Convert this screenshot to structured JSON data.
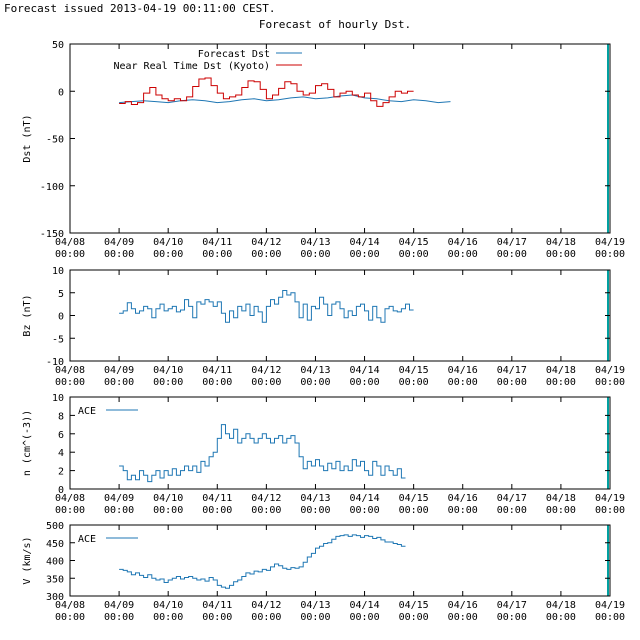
{
  "header": {
    "issued_text": "Forecast issued 2013-04-19 00:11:00 CEST."
  },
  "colors": {
    "forecast": "#1f77b4",
    "observed": "#cc0000",
    "axis": "#000000",
    "nowline": "#00a0a0"
  },
  "chart_data": [
    {
      "type": "line",
      "title": "Forecast of hourly Dst.",
      "ylabel": "Dst (nT)",
      "ylim": [
        -150,
        50
      ],
      "yticks": [
        "50",
        "0",
        "-50",
        "-100",
        "-150"
      ],
      "xlim": [
        "04/08 00:00",
        "04/19 00:00"
      ],
      "x_ticks": [
        [
          "04/08",
          "00:00"
        ],
        [
          "04/09",
          "00:00"
        ],
        [
          "04/10",
          "00:00"
        ],
        [
          "04/11",
          "00:00"
        ],
        [
          "04/12",
          "00:00"
        ],
        [
          "04/13",
          "00:00"
        ],
        [
          "04/14",
          "00:00"
        ],
        [
          "04/15",
          "00:00"
        ],
        [
          "04/16",
          "00:00"
        ],
        [
          "04/17",
          "00:00"
        ],
        [
          "04/18",
          "00:00"
        ],
        [
          "04/19",
          "00:00"
        ]
      ],
      "legend": "top-left",
      "series": [
        {
          "name": "Forecast Dst",
          "style": "line",
          "x_start": "04/09 00:00",
          "step_hours": 6,
          "values": [
            -12,
            -11,
            -10,
            -11,
            -12,
            -10,
            -9,
            -10,
            -12,
            -11,
            -9,
            -8,
            -10,
            -9,
            -7,
            -6,
            -8,
            -7,
            -5,
            -4,
            -7,
            -8,
            -10,
            -11,
            -9,
            -10,
            -12,
            -11
          ]
        },
        {
          "name": "Near Real Time Dst (Kyoto)",
          "style": "step",
          "x_start": "04/09 00:00",
          "step_hours": 3,
          "values": [
            -13,
            -11,
            -14,
            -12,
            -2,
            4,
            -4,
            -8,
            -10,
            -8,
            -10,
            -6,
            5,
            13,
            14,
            6,
            -2,
            -8,
            -6,
            -4,
            4,
            11,
            10,
            2,
            -8,
            -4,
            3,
            10,
            8,
            0,
            -4,
            -2,
            6,
            8,
            2,
            -6,
            -2,
            0,
            -4,
            -6,
            -2,
            -10,
            -16,
            -12,
            -6,
            0,
            -2,
            0
          ]
        }
      ]
    },
    {
      "type": "line",
      "ylabel": "Bz (nT)",
      "ylim": [
        -10,
        10
      ],
      "yticks": [
        "10",
        "5",
        "0",
        "-5",
        "-10"
      ],
      "xlim": [
        "04/08 00:00",
        "04/19 00:00"
      ],
      "series": [
        {
          "style": "step",
          "x_start": "04/09 00:00",
          "step_hours": 2,
          "values": [
            0.5,
            1,
            2.8,
            1.5,
            0.5,
            1,
            2,
            1.5,
            -0.5,
            1.5,
            2.5,
            1,
            1.5,
            2,
            0.8,
            1.2,
            3.5,
            2,
            -0.5,
            3,
            2.5,
            3.5,
            3,
            2,
            3,
            0.5,
            -1.5,
            1,
            -0.5,
            2,
            1,
            2.5,
            0,
            2,
            0.8,
            -1.5,
            2,
            3.5,
            2.5,
            4,
            5.5,
            4.5,
            5,
            3,
            -0.5,
            2.5,
            -1,
            2,
            1.5,
            4,
            2.5,
            0,
            2.5,
            3,
            1.5,
            -0.5,
            1,
            0,
            2,
            2.5,
            1,
            -1,
            2,
            -0.5,
            -1.5,
            1.5,
            2,
            1,
            0.8,
            1.5,
            2.5,
            1.2
          ]
        }
      ]
    },
    {
      "type": "line",
      "ylabel": "n (cm^(-3))",
      "ylim": [
        0,
        10
      ],
      "yticks": [
        "10",
        "8",
        "6",
        "4",
        "2",
        "0"
      ],
      "xlim": [
        "04/08 00:00",
        "04/19 00:00"
      ],
      "legend": "top-left",
      "series": [
        {
          "name": "ACE",
          "style": "step",
          "x_start": "04/09 00:00",
          "step_hours": 2,
          "values": [
            2.5,
            2,
            1,
            1.5,
            1,
            2,
            1.5,
            0.8,
            1.5,
            2,
            1.2,
            2,
            1.5,
            2.2,
            1.5,
            2,
            2.5,
            2,
            2.5,
            1.8,
            3,
            2.5,
            3.5,
            4,
            5.5,
            7,
            6,
            5.5,
            6.5,
            5,
            5.5,
            6,
            5.5,
            5,
            5.5,
            6,
            5.5,
            5,
            5.5,
            5.8,
            5,
            5.5,
            5.8,
            5,
            3.5,
            2.2,
            3,
            2.5,
            3.2,
            2.5,
            2,
            2.8,
            2.2,
            3,
            2,
            2.5,
            2,
            3.2,
            2.5,
            3,
            2,
            1.5,
            3,
            2.5,
            1.5,
            2.5,
            2,
            1.5,
            2.2,
            1.2
          ]
        }
      ]
    },
    {
      "type": "line",
      "ylabel": "V (km/s)",
      "ylim": [
        300,
        500
      ],
      "yticks": [
        "500",
        "450",
        "400",
        "350",
        "300"
      ],
      "xlim": [
        "04/08 00:00",
        "04/19 00:00"
      ],
      "legend": "top-left",
      "series": [
        {
          "name": "ACE",
          "style": "step",
          "x_start": "04/09 00:00",
          "step_hours": 2,
          "values": [
            375,
            372,
            368,
            360,
            365,
            358,
            352,
            360,
            350,
            345,
            348,
            338,
            345,
            350,
            355,
            348,
            352,
            355,
            350,
            345,
            348,
            342,
            352,
            345,
            330,
            325,
            322,
            330,
            340,
            345,
            355,
            365,
            362,
            370,
            368,
            375,
            372,
            382,
            390,
            385,
            378,
            375,
            380,
            378,
            382,
            395,
            410,
            420,
            435,
            440,
            448,
            450,
            460,
            468,
            470,
            472,
            468,
            472,
            470,
            465,
            470,
            468,
            462,
            465,
            458,
            452,
            452,
            448,
            445,
            440
          ]
        }
      ]
    }
  ]
}
